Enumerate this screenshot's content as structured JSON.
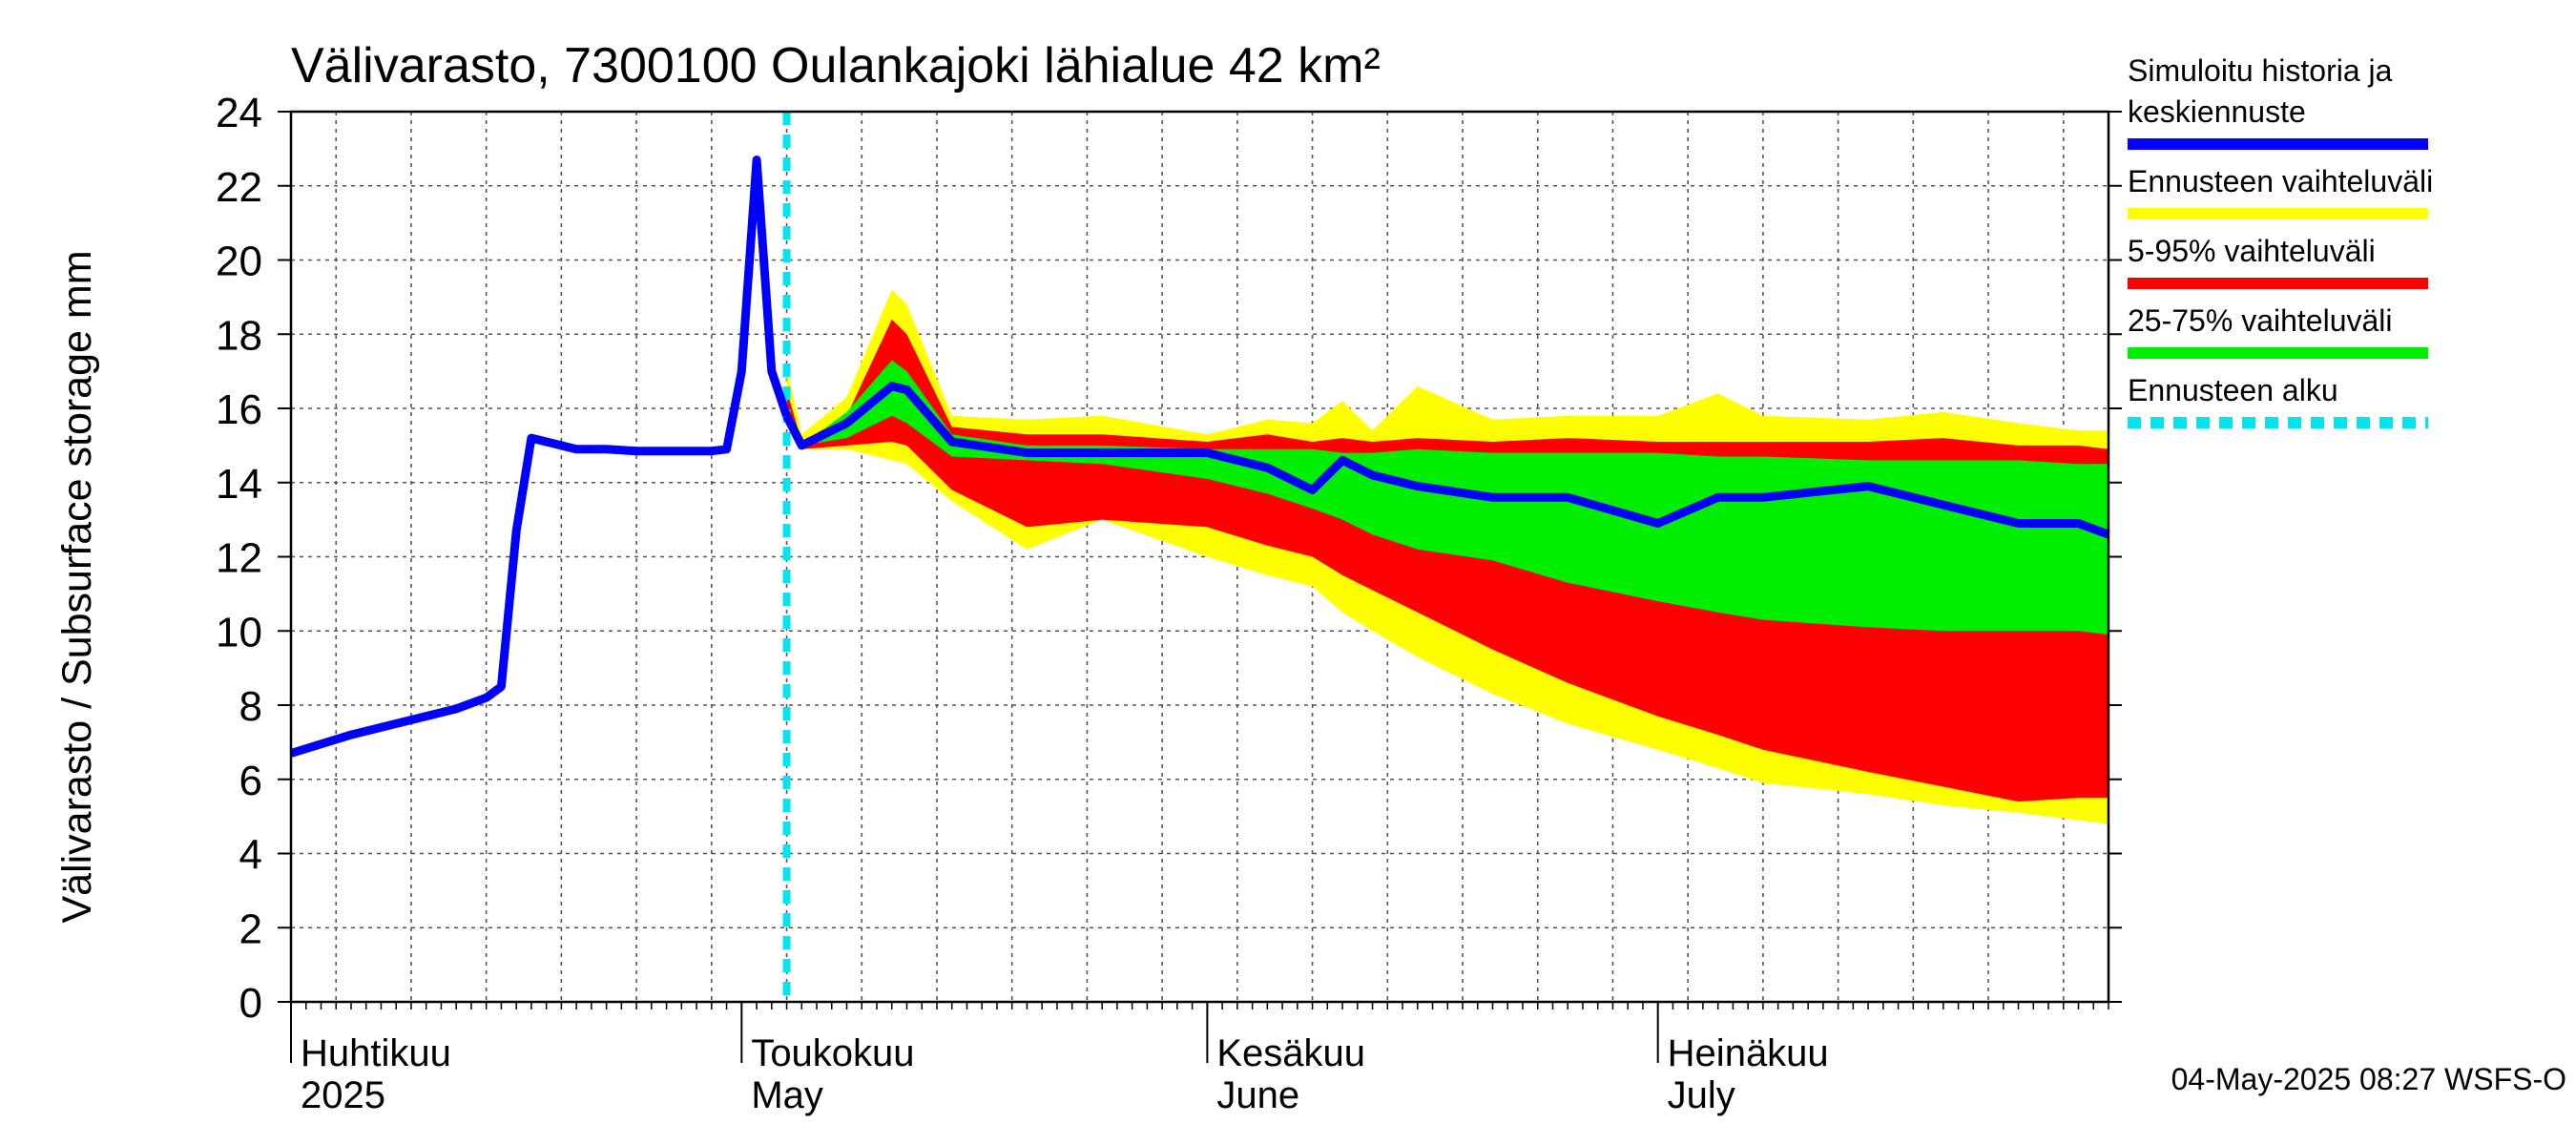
{
  "chart_data": {
    "type": "area",
    "title": "Välivarasto, 7300100 Oulankajoki lähialue 42 km²",
    "ylabel": "Välivarasto / Subsurface storage  mm",
    "ylim": [
      0,
      24
    ],
    "yticks": [
      0,
      2,
      4,
      6,
      8,
      10,
      12,
      14,
      16,
      18,
      20,
      22,
      24
    ],
    "x_start": "2025-04-01",
    "x_end": "2025-07-31",
    "grid": true,
    "months": [
      {
        "date": "2025-04-01",
        "fi": "Huhtikuu",
        "en": "2025"
      },
      {
        "date": "2025-05-01",
        "fi": "Toukokuu",
        "en": "May"
      },
      {
        "date": "2025-06-01",
        "fi": "Kesäkuu",
        "en": "June"
      },
      {
        "date": "2025-07-01",
        "fi": "Heinäkuu",
        "en": "July"
      }
    ],
    "forecast_start": "2025-05-04",
    "history": {
      "name": "Simuloitu historia ja keskiennuste",
      "color": "#0000ff",
      "points": [
        [
          "2025-04-01",
          6.7
        ],
        [
          "2025-04-05",
          7.2
        ],
        [
          "2025-04-09",
          7.6
        ],
        [
          "2025-04-12",
          7.9
        ],
        [
          "2025-04-14",
          8.2
        ],
        [
          "2025-04-15",
          8.5
        ],
        [
          "2025-04-16",
          12.7
        ],
        [
          "2025-04-17",
          15.2
        ],
        [
          "2025-04-19",
          15.0
        ],
        [
          "2025-04-20",
          14.9
        ],
        [
          "2025-04-22",
          14.9
        ],
        [
          "2025-04-24",
          14.85
        ],
        [
          "2025-04-29",
          14.85
        ],
        [
          "2025-04-30",
          14.9
        ],
        [
          "2025-05-01",
          17.0
        ],
        [
          "2025-05-02",
          22.7
        ],
        [
          "2025-05-03",
          17.0
        ],
        [
          "2025-05-04",
          15.8
        ]
      ]
    },
    "forecast": {
      "dates": [
        "2025-05-04",
        "2025-05-05",
        "2025-05-08",
        "2025-05-11",
        "2025-05-12",
        "2025-05-15",
        "2025-05-20",
        "2025-05-25",
        "2025-06-01",
        "2025-06-05",
        "2025-06-08",
        "2025-06-10",
        "2025-06-12",
        "2025-06-15",
        "2025-06-20",
        "2025-06-25",
        "2025-07-01",
        "2025-07-05",
        "2025-07-08",
        "2025-07-15",
        "2025-07-20",
        "2025-07-25",
        "2025-07-29",
        "2025-07-31"
      ],
      "median": [
        15.8,
        15.0,
        15.6,
        16.6,
        16.5,
        15.1,
        14.8,
        14.8,
        14.8,
        14.4,
        13.8,
        14.6,
        14.2,
        13.9,
        13.6,
        13.6,
        12.9,
        13.6,
        13.6,
        13.9,
        13.4,
        12.9,
        12.9,
        12.6
      ],
      "bands": [
        {
          "name": "Ennusteen vaihteluväli",
          "color": "#ffff00",
          "upper": [
            17.1,
            15.3,
            16.3,
            19.2,
            18.8,
            15.8,
            15.7,
            15.8,
            15.3,
            15.7,
            15.6,
            16.2,
            15.4,
            16.6,
            15.7,
            15.8,
            15.8,
            16.4,
            15.8,
            15.7,
            15.9,
            15.6,
            15.4,
            15.4
          ],
          "lower": [
            15.8,
            14.9,
            14.9,
            14.6,
            14.5,
            13.5,
            12.2,
            13.0,
            12.0,
            11.5,
            11.2,
            10.5,
            10.0,
            9.3,
            8.3,
            7.5,
            6.8,
            6.3,
            5.9,
            5.6,
            5.3,
            5.1,
            4.9,
            4.8
          ]
        },
        {
          "name": "5-95% vaihteluväli",
          "color": "#ff0000",
          "upper": [
            16.5,
            15.1,
            15.8,
            18.4,
            18.0,
            15.5,
            15.3,
            15.3,
            15.1,
            15.3,
            15.1,
            15.2,
            15.1,
            15.2,
            15.1,
            15.2,
            15.1,
            15.1,
            15.1,
            15.1,
            15.2,
            15.0,
            15.0,
            14.9
          ],
          "lower": [
            15.8,
            14.9,
            15.0,
            15.1,
            15.0,
            13.8,
            12.8,
            13.0,
            12.8,
            12.3,
            12.0,
            11.5,
            11.1,
            10.5,
            9.5,
            8.6,
            7.7,
            7.2,
            6.8,
            6.2,
            5.8,
            5.4,
            5.5,
            5.5
          ]
        },
        {
          "name": "25-75% vaihteluväli",
          "color": "#00ee00",
          "upper": [
            15.9,
            15.0,
            15.9,
            17.3,
            17.0,
            15.3,
            15.0,
            15.0,
            14.9,
            14.9,
            14.9,
            14.8,
            14.8,
            14.9,
            14.8,
            14.8,
            14.8,
            14.7,
            14.7,
            14.6,
            14.6,
            14.6,
            14.5,
            14.5
          ],
          "lower": [
            15.8,
            15.0,
            15.2,
            15.8,
            15.6,
            14.7,
            14.6,
            14.5,
            14.1,
            13.7,
            13.3,
            13.0,
            12.6,
            12.2,
            11.9,
            11.3,
            10.8,
            10.5,
            10.3,
            10.1,
            10.0,
            10.0,
            10.0,
            9.9
          ]
        }
      ]
    },
    "legend": [
      {
        "label_lines": [
          "Simuloitu historia ja",
          "keskiennuste"
        ],
        "color": "#0000ff",
        "style": "solid"
      },
      {
        "label_lines": [
          "Ennusteen vaihteluväli"
        ],
        "color": "#ffff00",
        "style": "solid"
      },
      {
        "label_lines": [
          "5-95% vaihteluväli"
        ],
        "color": "#ff0000",
        "style": "solid"
      },
      {
        "label_lines": [
          "25-75% vaihteluväli"
        ],
        "color": "#00ee00",
        "style": "solid"
      },
      {
        "label_lines": [
          "Ennusteen alku"
        ],
        "color": "#00e5ee",
        "style": "dashed"
      }
    ],
    "footer": "04-May-2025 08:27 WSFS-O"
  }
}
